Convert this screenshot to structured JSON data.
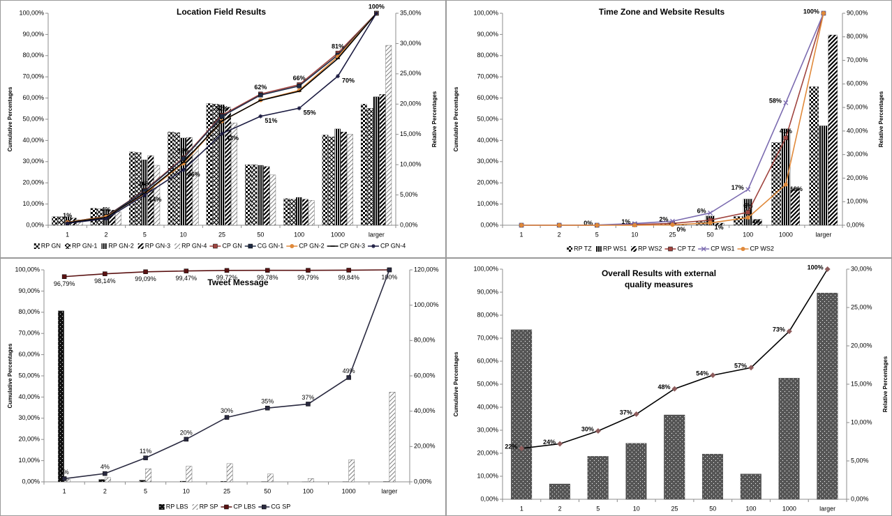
{
  "chart_data": [
    {
      "type": "combo",
      "title": "Location Field Results",
      "y_label": "Cumulative Percentages",
      "y2_label": "Relative Percentages",
      "categories": [
        "1",
        "2",
        "5",
        "10",
        "25",
        "50",
        "100",
        "1000",
        "larger"
      ],
      "ylim": [
        0,
        100
      ],
      "yticks": [
        {
          "value": 0,
          "label": "0,00%"
        },
        {
          "value": 10,
          "label": "10,00%"
        },
        {
          "value": 20,
          "label": "20,00%"
        },
        {
          "value": 30,
          "label": "30,00%"
        },
        {
          "value": 40,
          "label": "40,00%"
        },
        {
          "value": 50,
          "label": "50,00%"
        },
        {
          "value": 60,
          "label": "60,00%"
        },
        {
          "value": 70,
          "label": "70,00%"
        },
        {
          "value": 80,
          "label": "80,00%"
        },
        {
          "value": 90,
          "label": "90,00%"
        },
        {
          "value": 100,
          "label": "100,00%"
        }
      ],
      "y2lim": [
        0,
        35
      ],
      "y2ticks": [
        {
          "value": 0,
          "label": "0,00%"
        },
        {
          "value": 5,
          "label": "5,00%"
        },
        {
          "value": 10,
          "label": "10,00%"
        },
        {
          "value": 15,
          "label": "15,00%"
        },
        {
          "value": 20,
          "label": "20,00%"
        },
        {
          "value": 25,
          "label": "25,00%"
        },
        {
          "value": 30,
          "label": "30,00%"
        },
        {
          "value": 35,
          "label": "35,00%"
        }
      ],
      "legend": "bottom",
      "series": [
        {
          "name": "RP GN",
          "kind": "bar",
          "axis": "y2",
          "color": "#000000",
          "pattern": "checker",
          "values": [
            1.4,
            2.8,
            12.1,
            15.4,
            20.1,
            10.0,
            4.4,
            14.9,
            20.0
          ]
        },
        {
          "name": "RP GN-1",
          "kind": "bar",
          "axis": "y2",
          "color": "#000000",
          "pattern": "cross",
          "values": [
            1.4,
            2.7,
            12.0,
            15.3,
            20.0,
            10.0,
            4.3,
            14.6,
            19.3
          ]
        },
        {
          "name": "RP GN-2",
          "kind": "bar",
          "axis": "y2",
          "color": "#000000",
          "pattern": "vert",
          "values": [
            1.4,
            2.6,
            10.8,
            14.4,
            19.9,
            9.9,
            4.6,
            15.9,
            21.2
          ]
        },
        {
          "name": "RP GN-3",
          "kind": "bar",
          "axis": "y2",
          "color": "#000000",
          "pattern": "diag",
          "values": [
            1.2,
            2.5,
            11.5,
            14.5,
            19.5,
            9.7,
            4.3,
            15.4,
            21.6
          ]
        },
        {
          "name": "RP GN-4",
          "kind": "bar",
          "axis": "y2",
          "color": "#808080",
          "pattern": "hatch",
          "values": [
            0.9,
            2.2,
            9.9,
            13.0,
            16.9,
            8.3,
            4.1,
            15.0,
            29.7
          ]
        },
        {
          "name": "CP GN",
          "kind": "line",
          "color": "#a0443f",
          "marker": "square",
          "label_position": "above",
          "values": [
            1.4,
            4.2,
            16.4,
            31.8,
            51.9,
            61.9,
            66.3,
            81.2,
            100
          ],
          "value_labels": [
            "1%",
            "4%",
            "16%",
            "32%",
            "52%",
            "62%",
            "66%",
            "81%",
            "100%"
          ]
        },
        {
          "name": "CG GN-1",
          "kind": "line",
          "color": "#1f2a44",
          "marker": "square",
          "values": [
            1.4,
            4.1,
            16.1,
            31.4,
            51.4,
            61.4,
            65.7,
            80.3,
            100
          ]
        },
        {
          "name": "CP GN-2",
          "kind": "line",
          "color": "#e0893a",
          "marker": "circle",
          "values": [
            1.4,
            4.0,
            14.8,
            29.2,
            49.1,
            59.0,
            63.6,
            79.5,
            100
          ]
        },
        {
          "name": "CP GN-3",
          "kind": "line",
          "color": "#000000",
          "marker": "dash",
          "values": [
            1.2,
            3.7,
            15.2,
            29.7,
            49.2,
            58.9,
            63.2,
            78.6,
            100
          ]
        },
        {
          "name": "CP GN-4",
          "kind": "line",
          "color": "#1a1a40",
          "marker": "star",
          "label_position": "right",
          "values": [
            0.9,
            3.1,
            14.2,
            26.1,
            43.2,
            51.4,
            55.2,
            70.3,
            100
          ],
          "value_labels": [
            null,
            null,
            "14%",
            "26%",
            "43%",
            "51%",
            "55%",
            "70%",
            null
          ]
        }
      ]
    },
    {
      "type": "combo",
      "title": "Time Zone and Website Results",
      "y_label": "Cumulative Percentages",
      "y2_label": "Relative Percentages",
      "categories": [
        "1",
        "2",
        "5",
        "10",
        "25",
        "50",
        "100",
        "1000",
        "larger"
      ],
      "ylim": [
        0,
        100
      ],
      "yticks": [
        {
          "value": 0,
          "label": "0,00%"
        },
        {
          "value": 10,
          "label": "10,00%"
        },
        {
          "value": 20,
          "label": "20,00%"
        },
        {
          "value": 30,
          "label": "30,00%"
        },
        {
          "value": 40,
          "label": "40,00%"
        },
        {
          "value": 50,
          "label": "50,00%"
        },
        {
          "value": 60,
          "label": "60,00%"
        },
        {
          "value": 70,
          "label": "70,00%"
        },
        {
          "value": 80,
          "label": "80,00%"
        },
        {
          "value": 90,
          "label": "90,00%"
        },
        {
          "value": 100,
          "label": "100,00%"
        }
      ],
      "y2lim": [
        0,
        90
      ],
      "y2ticks": [
        {
          "value": 0,
          "label": "0,00%"
        },
        {
          "value": 10,
          "label": "10,00%"
        },
        {
          "value": 20,
          "label": "20,00%"
        },
        {
          "value": 30,
          "label": "30,00%"
        },
        {
          "value": 40,
          "label": "40,00%"
        },
        {
          "value": 50,
          "label": "50,00%"
        },
        {
          "value": 60,
          "label": "60,00%"
        },
        {
          "value": 70,
          "label": "70,00%"
        },
        {
          "value": 80,
          "label": "80,00%"
        },
        {
          "value": 90,
          "label": "90,00%"
        }
      ],
      "legend": "bottom",
      "series": [
        {
          "name": "RP TZ",
          "kind": "bar",
          "axis": "y2",
          "color": "#000000",
          "pattern": "checker",
          "values": [
            0,
            0,
            0,
            0.3,
            0.6,
            1.5,
            3.7,
            35.1,
            58.8
          ]
        },
        {
          "name": "RP WS1",
          "kind": "bar",
          "axis": "y2",
          "color": "#000000",
          "pattern": "vert",
          "values": [
            0,
            0,
            0.1,
            0.7,
            1.1,
            3.9,
            11.1,
            40.9,
            42.2
          ]
        },
        {
          "name": "RP WS2",
          "kind": "bar",
          "axis": "y2",
          "color": "#000000",
          "pattern": "diag",
          "values": [
            0,
            0,
            0,
            0,
            0.2,
            0.9,
            2.5,
            15.6,
            80.8
          ]
        },
        {
          "name": "CP TZ",
          "kind": "line",
          "color": "#a0443f",
          "marker": "square",
          "label_position": "above",
          "values": [
            0,
            0,
            0,
            0.3,
            0.9,
            2.4,
            6.1,
            41.2,
            100
          ],
          "value_labels": [
            null,
            null,
            null,
            null,
            null,
            null,
            "6%",
            "41%",
            null
          ]
        },
        {
          "name": "CP WS1",
          "kind": "line",
          "color": "#7b6bb0",
          "marker": "x",
          "label_position": "left",
          "values": [
            0,
            0,
            0.1,
            0.8,
            1.9,
            5.8,
            16.9,
            57.8,
            100
          ],
          "value_labels": [
            null,
            null,
            "0%",
            "1%",
            "2%",
            "6%",
            "17%",
            "58%",
            "100%"
          ]
        },
        {
          "name": "CP WS2",
          "kind": "line",
          "color": "#e0893a",
          "marker": "circle",
          "label_position": "right",
          "values": [
            0,
            0,
            0,
            0,
            0.2,
            1.1,
            3.6,
            19.2,
            100
          ],
          "value_labels": [
            null,
            null,
            null,
            null,
            "0%",
            "1%",
            "4%",
            "19%",
            null
          ]
        }
      ]
    },
    {
      "type": "combo",
      "title": "Tweet Message",
      "y_label": "Cumulative Percentages",
      "y2_label": "Relative Percentages",
      "categories": [
        "1",
        "2",
        "5",
        "10",
        "25",
        "50",
        "100",
        "1000",
        "larger"
      ],
      "ylim": [
        0,
        100
      ],
      "yticks": [
        {
          "value": 0,
          "label": "0,00%"
        },
        {
          "value": 10,
          "label": "10,00%"
        },
        {
          "value": 20,
          "label": "20,00%"
        },
        {
          "value": 30,
          "label": "30,00%"
        },
        {
          "value": 40,
          "label": "40,00%"
        },
        {
          "value": 50,
          "label": "50,00%"
        },
        {
          "value": 60,
          "label": "60,00%"
        },
        {
          "value": 70,
          "label": "70,00%"
        },
        {
          "value": 80,
          "label": "80,00%"
        },
        {
          "value": 90,
          "label": "90,00%"
        },
        {
          "value": 100,
          "label": "100,00%"
        }
      ],
      "y2lim": [
        0,
        120
      ],
      "y2ticks": [
        {
          "value": 0,
          "label": "0,00%"
        },
        {
          "value": 20,
          "label": "20,00%"
        },
        {
          "value": 40,
          "label": "40,00%"
        },
        {
          "value": 60,
          "label": "60,00%"
        },
        {
          "value": 80,
          "label": "80,00%"
        },
        {
          "value": 100,
          "label": "100,00%"
        },
        {
          "value": 120,
          "label": "120,00%"
        }
      ],
      "legend": "bottom",
      "series": [
        {
          "name": "RP LBS",
          "kind": "bar",
          "axis": "y2",
          "color": "#111111",
          "pattern": "dots",
          "values": [
            96.79,
            1.35,
            0.95,
            0.38,
            0.25,
            0.06,
            0.01,
            0.05,
            0.16
          ]
        },
        {
          "name": "RP SP",
          "kind": "bar",
          "axis": "y2",
          "color": "#808080",
          "pattern": "hatch",
          "values": [
            1.5,
            2.4,
            7.4,
            8.8,
            10.3,
            4.4,
            1.9,
            12.5,
            50.8
          ]
        },
        {
          "name": "CP LBS",
          "kind": "line",
          "color": "#5a1212",
          "marker": "square",
          "label_position": "below",
          "values": [
            96.79,
            98.14,
            99.09,
            99.47,
            99.72,
            99.78,
            99.79,
            99.84,
            100
          ],
          "value_labels": [
            "96,79%",
            "98,14%",
            "99,09%",
            "99,47%",
            "99,72%",
            "99,78%",
            "99,79%",
            "99,84%",
            "100%"
          ]
        },
        {
          "name": "CG SP",
          "kind": "line",
          "color": "#2a2a40",
          "marker": "square",
          "label_position": "above",
          "values": [
            1.5,
            3.9,
            11.3,
            20.1,
            30.4,
            34.8,
            36.7,
            49.2,
            100
          ],
          "value_labels": [
            "1%",
            "4%",
            "11%",
            "20%",
            "30%",
            "35%",
            "37%",
            "49%",
            null
          ]
        }
      ]
    },
    {
      "type": "combo",
      "title": "Overall Results with external quality measures",
      "y_label": "Cumulative Percentages",
      "y2_label": "Relative Percentages",
      "categories": [
        "1",
        "2",
        "5",
        "10",
        "25",
        "50",
        "100",
        "1000",
        "larger"
      ],
      "ylim": [
        0,
        100
      ],
      "yticks": [
        {
          "value": 0,
          "label": "0,00%"
        },
        {
          "value": 10,
          "label": "10,00%"
        },
        {
          "value": 20,
          "label": "20,00%"
        },
        {
          "value": 30,
          "label": "30,00%"
        },
        {
          "value": 40,
          "label": "40,00%"
        },
        {
          "value": 50,
          "label": "50,00%"
        },
        {
          "value": 60,
          "label": "60,00%"
        },
        {
          "value": 70,
          "label": "70,00%"
        },
        {
          "value": 80,
          "label": "80,00%"
        },
        {
          "value": 90,
          "label": "90,00%"
        },
        {
          "value": 100,
          "label": "100,00%"
        }
      ],
      "y2lim": [
        0,
        30
      ],
      "y2ticks": [
        {
          "value": 0,
          "label": "0,00%"
        },
        {
          "value": 5,
          "label": "5,00%"
        },
        {
          "value": 10,
          "label": "10,00%"
        },
        {
          "value": 15,
          "label": "15,00%"
        },
        {
          "value": 20,
          "label": "20,00%"
        },
        {
          "value": 25,
          "label": "25,00%"
        },
        {
          "value": 30,
          "label": "30,00%"
        }
      ],
      "series": [
        {
          "kind": "bar",
          "axis": "y2",
          "color": "#555555",
          "pattern": "dots",
          "values": [
            22.1,
            2.0,
            5.6,
            7.3,
            11.0,
            5.9,
            3.3,
            15.8,
            26.9
          ]
        },
        {
          "kind": "line",
          "color": "#000000",
          "marker": "diamond",
          "marker_color": "#8e5c5c",
          "label_position": "left",
          "values": [
            22.1,
            24.1,
            29.7,
            37.0,
            48.0,
            53.9,
            57.2,
            73.0,
            100
          ],
          "value_labels": [
            "22%",
            "24%",
            "30%",
            "37%",
            "48%",
            "54%",
            "57%",
            "73%",
            "100%"
          ]
        }
      ]
    }
  ]
}
